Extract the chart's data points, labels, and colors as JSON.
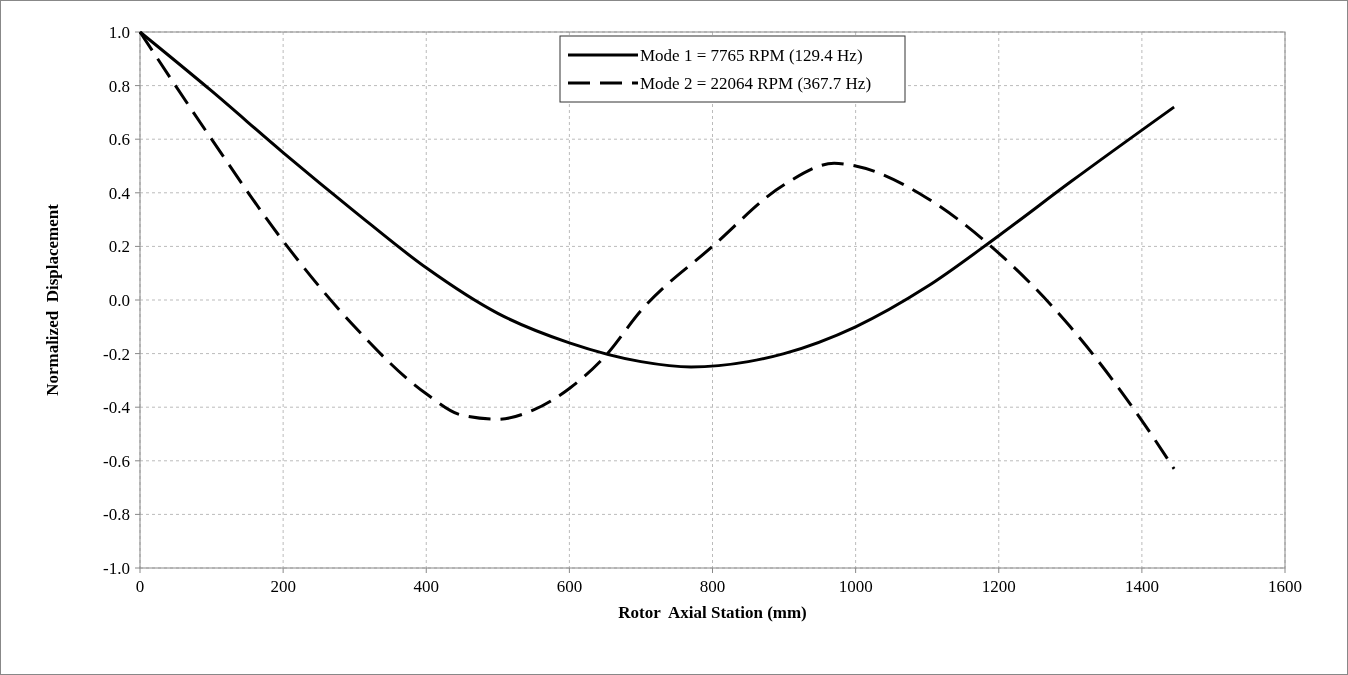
{
  "chart_data": {
    "type": "line",
    "xlabel": "Rotor  Axial Station (mm)",
    "ylabel": "Normalized  Displacement",
    "xlim": [
      0,
      1600
    ],
    "xticks": [
      0,
      200,
      400,
      600,
      800,
      1000,
      1200,
      1400,
      1600
    ],
    "ylim": [
      -1,
      1
    ],
    "yticks": [
      {
        "value": -1,
        "label": "-1.0"
      },
      {
        "value": -0.8,
        "label": "-0.8"
      },
      {
        "value": -0.6,
        "label": "-0.6"
      },
      {
        "value": -0.4,
        "label": "-0.4"
      },
      {
        "value": -0.2,
        "label": "-0.2"
      },
      {
        "value": 0,
        "label": "0.0"
      },
      {
        "value": 0.2,
        "label": "0.2"
      },
      {
        "value": 0.4,
        "label": "0.4"
      },
      {
        "value": 0.6,
        "label": "0.6"
      },
      {
        "value": 0.8,
        "label": "0.8"
      },
      {
        "value": 1,
        "label": "1.0"
      }
    ],
    "grid": true,
    "legend": "top",
    "series": [
      {
        "name": "Mode 1 = 7765 RPM (129.4 Hz)",
        "color": "#000000",
        "line_style": "solid",
        "x": [
          0,
          100,
          200,
          300,
          400,
          500,
          600,
          700,
          770,
          850,
          900,
          1000,
          1100,
          1200,
          1300,
          1445
        ],
        "values": [
          1,
          0.78,
          0.55,
          0.33,
          0.12,
          -0.05,
          -0.16,
          -0.23,
          -0.25,
          -0.23,
          -0.2,
          -0.1,
          0.05,
          0.24,
          0.44,
          0.72
        ]
      },
      {
        "name": "Mode 2 = 22064 RPM (367.7 Hz)",
        "color": "#000000",
        "line_style": "dashed",
        "x": [
          0,
          100,
          200,
          300,
          400,
          450,
          500,
          550,
          600,
          650,
          700,
          800,
          900,
          970,
          1000,
          1100,
          1185,
          1300,
          1400,
          1445
        ],
        "values": [
          1,
          0.6,
          0.22,
          -0.1,
          -0.35,
          -0.43,
          -0.445,
          -0.41,
          -0.33,
          -0.21,
          -0.04,
          0.2,
          0.43,
          0.51,
          0.5,
          0.38,
          0.21,
          -0.1,
          -0.45,
          -0.63
        ]
      }
    ]
  }
}
